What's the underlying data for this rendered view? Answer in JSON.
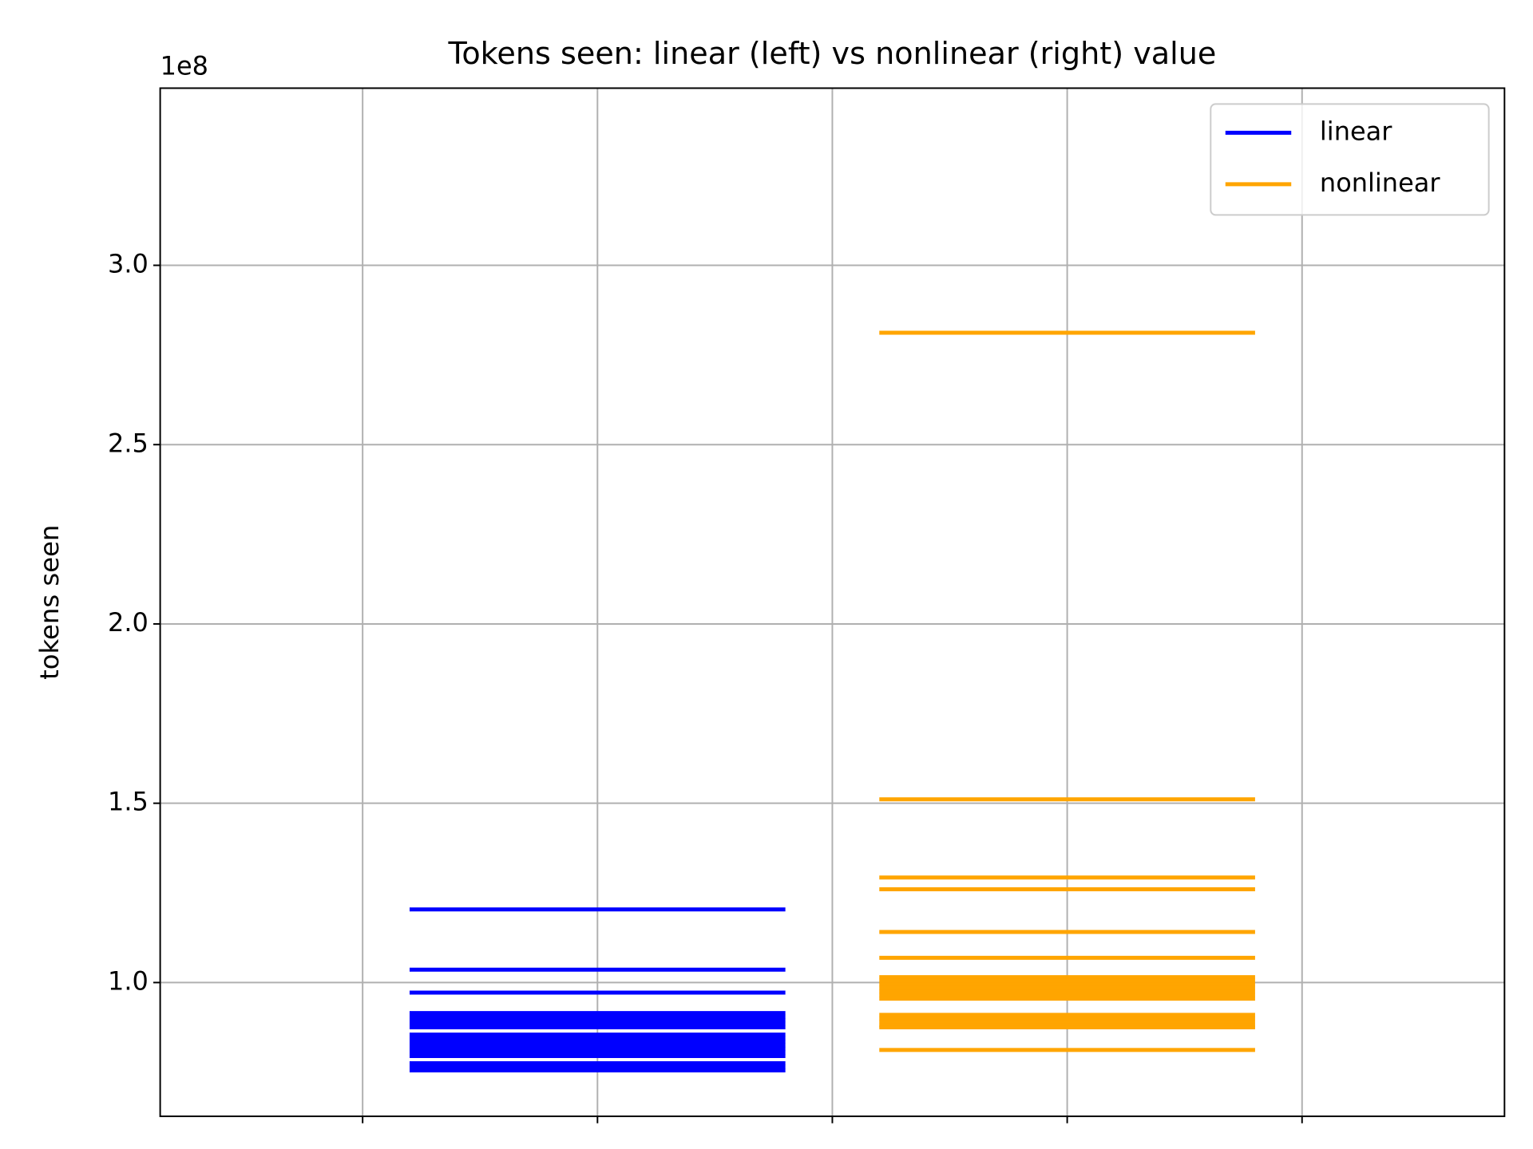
{
  "chart_data": {
    "type": "hlines",
    "title": "Tokens seen: linear (left) vs nonlinear (right) value",
    "ylabel": "tokens seen",
    "y_offset_label": "1e8",
    "ylim": [
      0.627,
      3.494
    ],
    "yticks": [
      {
        "value": 1,
        "label": "1.0"
      },
      1.5,
      {
        "value": 2,
        "label": "2.0"
      },
      2.5,
      {
        "value": 3,
        "label": "3.0"
      }
    ],
    "xlim": [
      -0.931,
      1.931
    ],
    "xticks": [
      -0.5,
      0,
      0.5,
      1,
      1.5
    ],
    "grid": true,
    "legend": "upper right",
    "series": [
      {
        "name": "linear",
        "color": "#0000ff",
        "xmin": -0.4,
        "xmax": 0.4,
        "values": [
          1.204,
          1.036,
          0.972,
          0.915,
          0.905,
          0.895,
          0.885,
          0.875,
          0.855,
          0.845,
          0.835,
          0.825,
          0.815,
          0.805,
          0.795,
          0.775,
          0.765,
          0.755
        ]
      },
      {
        "name": "nonlinear",
        "color": "#ffa500",
        "xmin": 0.6,
        "xmax": 1.4,
        "values": [
          2.812,
          1.511,
          1.293,
          1.26,
          1.141,
          1.069,
          1.015,
          1.005,
          0.995,
          0.985,
          0.975,
          0.965,
          0.955,
          0.91,
          0.9,
          0.89,
          0.88,
          0.875,
          0.812
        ]
      }
    ]
  }
}
